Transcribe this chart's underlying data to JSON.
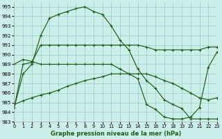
{
  "title": "Graphe pression niveau de la mer (hPa)",
  "bg_color": "#cceee8",
  "grid_color": "#99cccc",
  "line_color": "#1a5c1a",
  "xlim": [
    0,
    23
  ],
  "ylim": [
    983,
    995.5
  ],
  "xticks": [
    0,
    1,
    2,
    3,
    4,
    5,
    6,
    7,
    8,
    9,
    10,
    11,
    12,
    13,
    14,
    15,
    16,
    17,
    18,
    19,
    20,
    21,
    22,
    23
  ],
  "yticks": [
    983,
    984,
    985,
    986,
    987,
    988,
    989,
    990,
    991,
    992,
    993,
    994,
    995
  ],
  "series": [
    [
      984.5,
      988.0,
      989.0,
      992.0,
      993.8,
      994.2,
      994.5,
      994.8,
      995.0,
      994.5,
      994.2,
      993.0,
      991.5,
      990.5,
      988.5,
      987.3,
      986.5,
      985.3,
      984.8,
      984.4,
      983.3,
      983.3,
      983.3,
      983.3
    ],
    [
      984.5,
      989.0,
      989.2,
      991.0,
      991.0,
      991.0,
      991.0,
      991.0,
      991.0,
      991.0,
      991.0,
      991.0,
      991.0,
      991.0,
      991.0,
      990.8,
      990.5,
      990.5,
      990.5,
      990.5,
      990.5,
      990.5,
      990.8,
      990.8
    ],
    [
      989.0,
      989.5,
      989.3,
      989.0,
      989.0,
      989.0,
      989.0,
      989.0,
      989.0,
      989.0,
      989.0,
      989.0,
      988.5,
      988.0,
      987.5,
      984.8,
      984.3,
      983.5,
      983.3,
      983.3,
      983.5,
      984.5,
      988.7,
      990.3
    ],
    [
      984.8,
      985.2,
      985.5,
      985.8,
      986.0,
      986.3,
      986.7,
      987.0,
      987.3,
      987.5,
      987.7,
      988.0,
      988.0,
      988.0,
      988.0,
      988.0,
      987.7,
      987.3,
      987.0,
      986.5,
      986.0,
      985.5,
      985.3,
      985.5
    ]
  ]
}
